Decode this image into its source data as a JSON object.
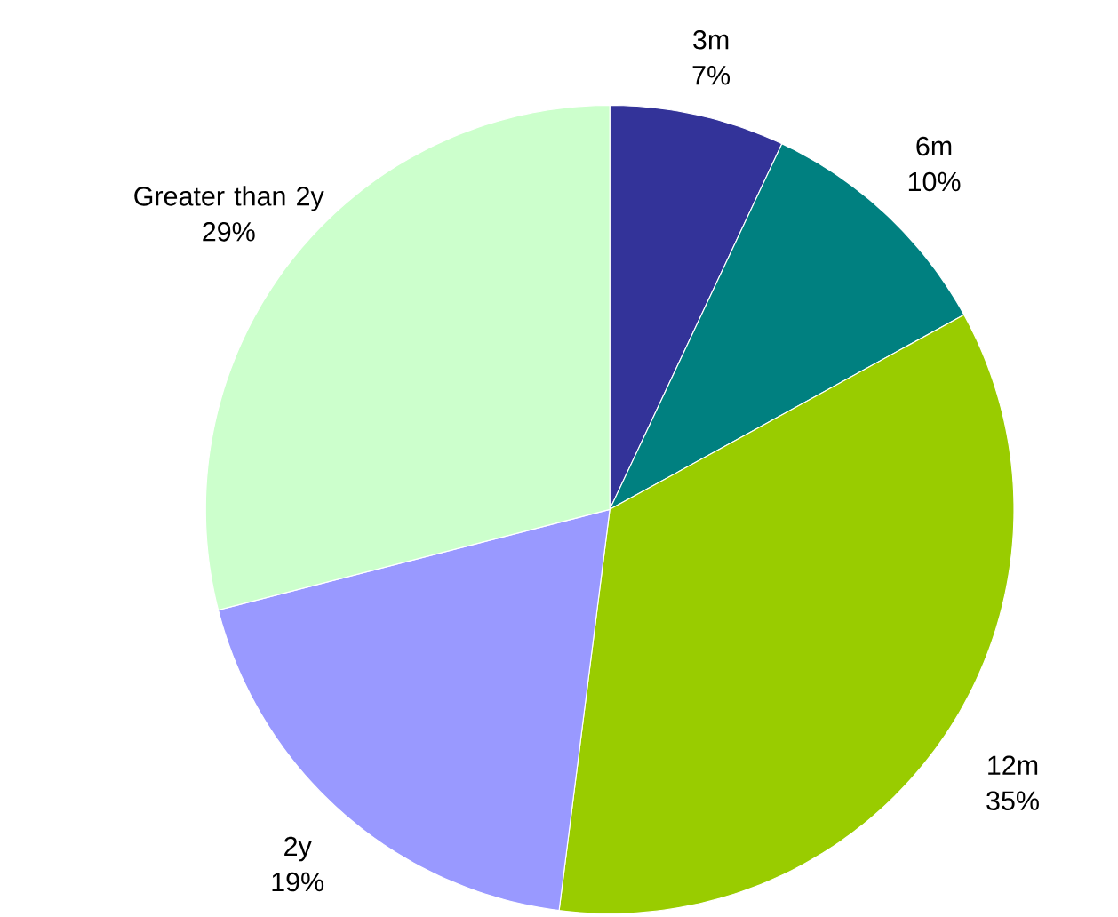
{
  "chart_data": {
    "type": "pie",
    "categories": [
      "3m",
      "6m",
      "12m",
      "2y",
      "Greater than 2y"
    ],
    "values": [
      7,
      10,
      35,
      19,
      29
    ],
    "value_labels": [
      "7%",
      "10%",
      "35%",
      "19%",
      "29%"
    ],
    "colors": [
      "#333399",
      "#008080",
      "#99cc00",
      "#9999ff",
      "#ccffcc"
    ]
  }
}
